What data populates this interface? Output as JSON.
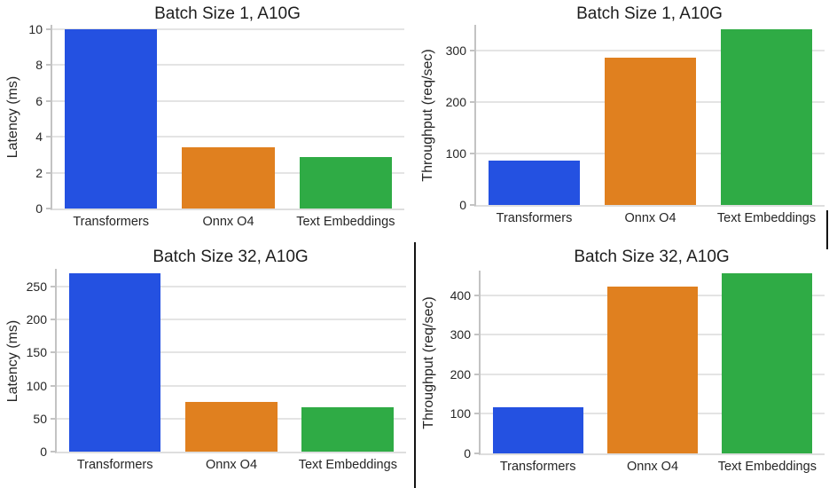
{
  "figure": {
    "background": "#ffffff"
  },
  "style": {
    "bar_colors": [
      "#2451e1",
      "#e0801f",
      "#2fab45"
    ],
    "gridline_color": "#e4e4e4",
    "spine_color": "#c3c3c3",
    "tick_text_color": "#262626",
    "title_color": "#1d1d1d",
    "divider_color": "#131313"
  },
  "chart_data": [
    {
      "type": "bar",
      "title": "Batch Size 1, A10G",
      "ylabel": "Latency (ms)",
      "xlabel": "",
      "categories": [
        "Transformers",
        "Onnx O4",
        "Text Embeddings"
      ],
      "values": [
        10.0,
        3.4,
        2.85
      ],
      "yticks": [
        0,
        2,
        4,
        6,
        8,
        10
      ],
      "ylim": [
        0,
        10.25
      ],
      "grid": true,
      "legend": false
    },
    {
      "type": "bar",
      "title": "Batch Size 1, A10G",
      "ylabel": "Throughput (req/sec)",
      "xlabel": "",
      "categories": [
        "Transformers",
        "Onnx O4",
        "Text Embeddings"
      ],
      "values": [
        86,
        287,
        342
      ],
      "yticks": [
        0,
        100,
        200,
        300
      ],
      "ylim": [
        0,
        350
      ],
      "grid": true,
      "legend": false
    },
    {
      "type": "bar",
      "title": "Batch Size 32, A10G",
      "ylabel": "Latency (ms)",
      "xlabel": "",
      "categories": [
        "Transformers",
        "Onnx O4",
        "Text Embeddings"
      ],
      "values": [
        270,
        75,
        67
      ],
      "yticks": [
        0,
        50,
        100,
        150,
        200,
        250
      ],
      "ylim": [
        0,
        277
      ],
      "grid": true,
      "legend": false
    },
    {
      "type": "bar",
      "title": "Batch Size 32, A10G",
      "ylabel": "Throughput (req/sec)",
      "xlabel": "",
      "categories": [
        "Transformers",
        "Onnx O4",
        "Text Embeddings"
      ],
      "values": [
        116,
        422,
        455
      ],
      "yticks": [
        0,
        100,
        200,
        300,
        400
      ],
      "ylim": [
        0,
        462
      ],
      "grid": true,
      "legend": false
    }
  ]
}
